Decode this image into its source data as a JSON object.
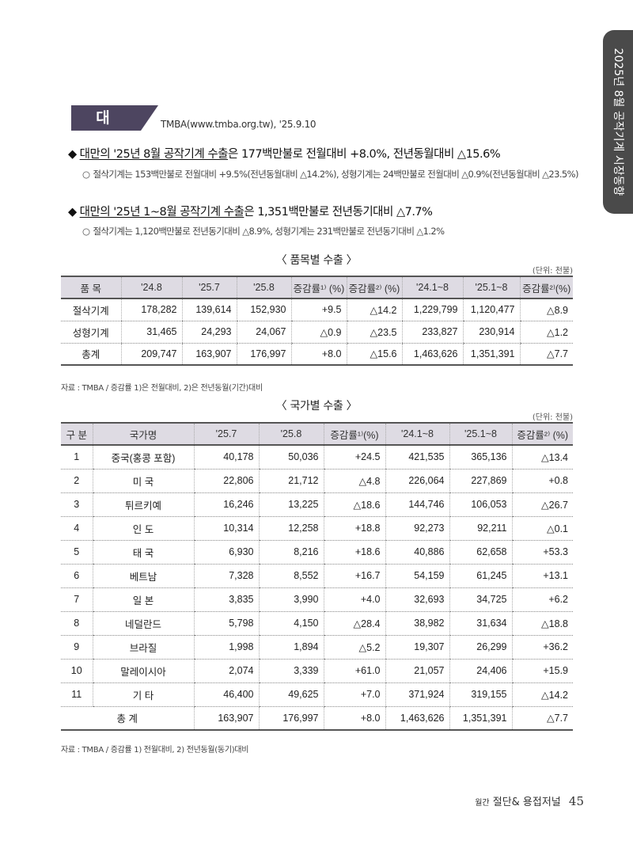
{
  "side_tab": "2025년 8월 공작기계 시장동향",
  "heading": {
    "country": "대 만",
    "source": "TMBA(www.tmba.org.tw), '25.9.10"
  },
  "bullets": [
    {
      "underlined": "대만의 '25년 8월 공작기계 수출",
      "rest": "은 177백만불로 전월대비 +8.0%, 전년동월대비 △15.6%",
      "sub": "절삭기계는 153백만불로 전월대비 +9.5%(전년동월대비 △14.2%), 성형기계는 24백만불로 전월대비 △0.9%(전년동월대비 △23.5%)"
    },
    {
      "underlined": "대만의 '25년 1~8월 공작기계 수출",
      "rest": "은 1,351백만불로 전년동기대비 △7.7%",
      "sub": "절삭기계는 1,120백만불로 전년동기대비 △8.9%, 성형기계는 231백만불로 전년동기대비 △1.2%"
    }
  ],
  "table1": {
    "title": "〈 품목별 수출 〉",
    "unit": "(단위: 천불)",
    "headers": [
      "품 목",
      "'24.8",
      "'25.7",
      "'25.8",
      "증감률¹⁾ (%)",
      "증감률²⁾ (%)",
      "'24.1~8",
      "'25.1~8",
      "증감률²⁾(%)"
    ],
    "rows": [
      [
        "절삭기계",
        "178,282",
        "139,614",
        "152,930",
        "+9.5",
        "△14.2",
        "1,229,799",
        "1,120,477",
        "△8.9"
      ],
      [
        "성형기계",
        "31,465",
        "24,293",
        "24,067",
        "△0.9",
        "△23.5",
        "233,827",
        "230,914",
        "△1.2"
      ],
      [
        "총계",
        "209,747",
        "163,907",
        "176,997",
        "+8.0",
        "△15.6",
        "1,463,626",
        "1,351,391",
        "△7.7"
      ]
    ],
    "note": "자료 : TMBA / 증감률 1)은 전월대비, 2)은 전년동월(기간)대비"
  },
  "table2": {
    "title": "〈 국가별 수출 〉",
    "unit": "(단위: 천불)",
    "headers": [
      "구 분",
      "국가명",
      "'25.7",
      "'25.8",
      "증감률¹⁾(%)",
      "'24.1~8",
      "'25.1~8",
      "증감률²⁾ (%)"
    ],
    "rows": [
      [
        "1",
        "중국(홍콩 포함)",
        "40,178",
        "50,036",
        "+24.5",
        "421,535",
        "365,136",
        "△13.4"
      ],
      [
        "2",
        "미 국",
        "22,806",
        "21,712",
        "△4.8",
        "226,064",
        "227,869",
        "+0.8"
      ],
      [
        "3",
        "튀르키예",
        "16,246",
        "13,225",
        "△18.6",
        "144,746",
        "106,053",
        "△26.7"
      ],
      [
        "4",
        "인 도",
        "10,314",
        "12,258",
        "+18.8",
        "92,273",
        "92,211",
        "△0.1"
      ],
      [
        "5",
        "태 국",
        "6,930",
        "8,216",
        "+18.6",
        "40,886",
        "62,658",
        "+53.3"
      ],
      [
        "6",
        "베트남",
        "7,328",
        "8,552",
        "+16.7",
        "54,159",
        "61,245",
        "+13.1"
      ],
      [
        "7",
        "일 본",
        "3,835",
        "3,990",
        "+4.0",
        "32,693",
        "34,725",
        "+6.2"
      ],
      [
        "8",
        "네덜란드",
        "5,798",
        "4,150",
        "△28.4",
        "38,982",
        "31,634",
        "△18.8"
      ],
      [
        "9",
        "브라질",
        "1,998",
        "1,894",
        "△5.2",
        "19,307",
        "26,299",
        "+36.2"
      ],
      [
        "10",
        "말레이시아",
        "2,074",
        "3,339",
        "+61.0",
        "21,057",
        "24,406",
        "+15.9"
      ],
      [
        "11",
        "기 타",
        "46,400",
        "49,625",
        "+7.0",
        "371,924",
        "319,155",
        "△14.2"
      ]
    ],
    "total": [
      "총 계",
      "163,907",
      "176,997",
      "+8.0",
      "1,463,626",
      "1,351,391",
      "△7.7"
    ],
    "note": "자료 : TMBA / 증감률 1) 전월대비, 2) 전년동월(동기)대비"
  },
  "footer": {
    "mag_small": "월간",
    "mag": "절단& 용접저널",
    "page": "45"
  }
}
